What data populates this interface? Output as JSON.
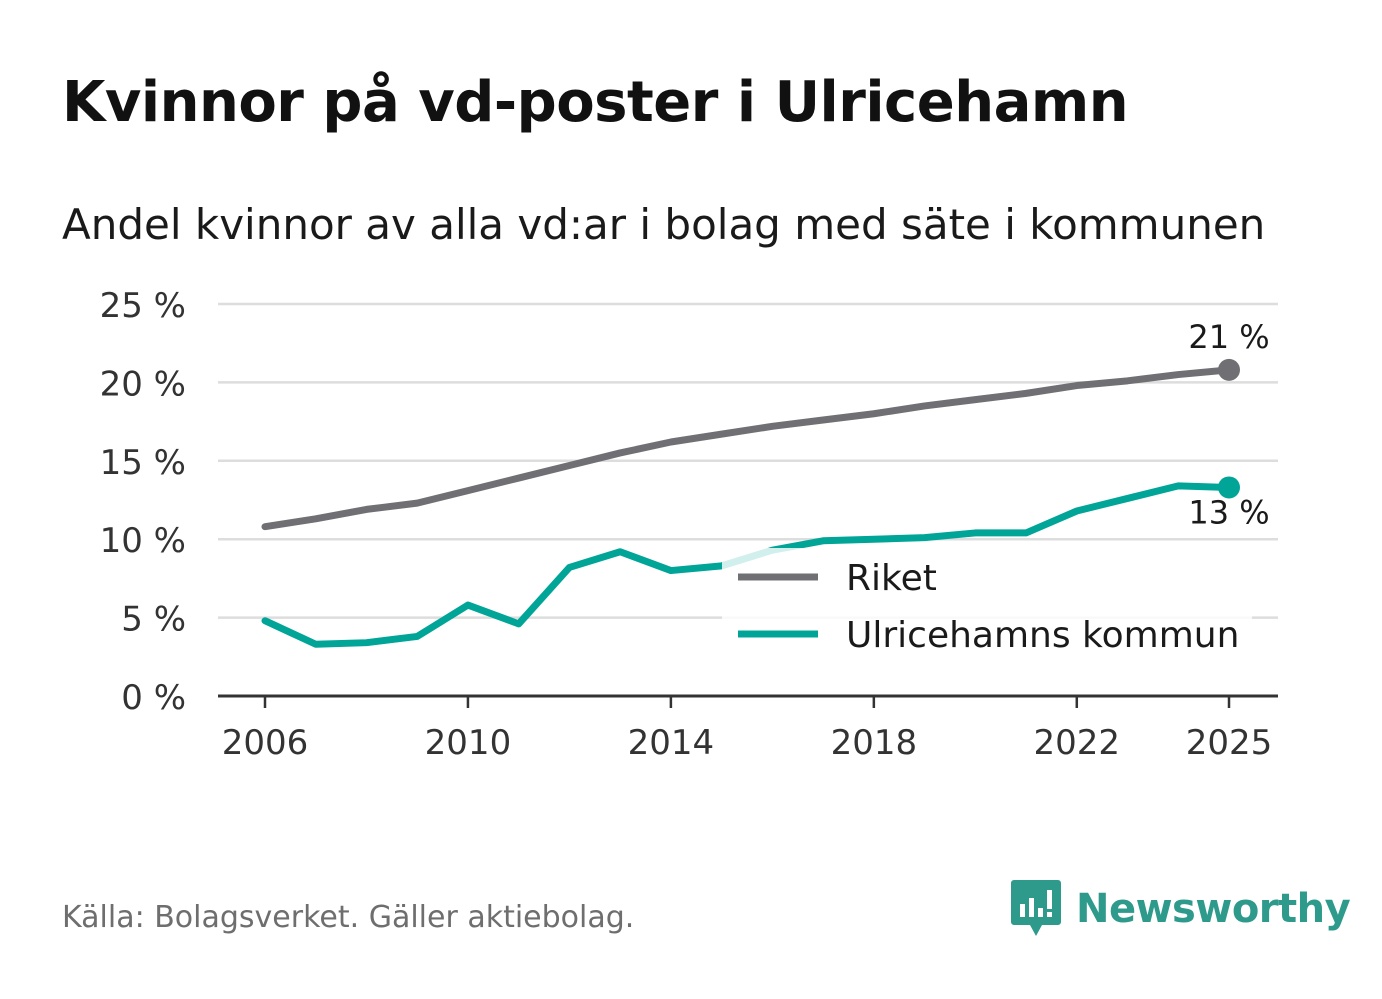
{
  "title": "Kvinnor på vd-poster i Ulricehamn",
  "subtitle": "Andel kvinnor av alla vd:ar i bolag med säte i kommunen",
  "source": "Källa: Bolagsverket. Gäller aktiebolag.",
  "brand": "Newsworthy",
  "colors": {
    "riket": "#707074",
    "kommun": "#00a597",
    "grid": "#dddddd",
    "axis": "#333333",
    "tick_text": "#333333"
  },
  "chart_data": {
    "type": "line",
    "ylim": [
      0,
      25
    ],
    "xlim": [
      2006,
      2025
    ],
    "y_ticks": [
      0,
      5,
      10,
      15,
      20,
      25
    ],
    "y_tick_labels": [
      "0 %",
      "5 %",
      "10 %",
      "15 %",
      "20 %",
      "25 %"
    ],
    "x_ticks": [
      2006,
      2010,
      2014,
      2018,
      2022,
      2025
    ],
    "x_tick_labels": [
      "2006",
      "2010",
      "2014",
      "2018",
      "2022",
      "2025"
    ],
    "grid": true,
    "legend_position": "inside-bottom-right",
    "x": [
      2006,
      2007,
      2008,
      2009,
      2010,
      2011,
      2012,
      2013,
      2014,
      2015,
      2016,
      2017,
      2018,
      2019,
      2020,
      2021,
      2022,
      2023,
      2024,
      2025
    ],
    "series": [
      {
        "name": "Riket",
        "color_key": "riket",
        "values": [
          10.8,
          11.3,
          11.9,
          12.3,
          13.1,
          13.9,
          14.7,
          15.5,
          16.2,
          16.7,
          17.2,
          17.6,
          18.0,
          18.5,
          18.9,
          19.3,
          19.8,
          20.1,
          20.5,
          20.8
        ],
        "end_label": "21 %"
      },
      {
        "name": "Ulricehamns kommun",
        "color_key": "kommun",
        "values": [
          4.8,
          3.3,
          3.4,
          3.8,
          5.8,
          4.6,
          8.2,
          9.2,
          8.0,
          8.3,
          9.3,
          9.9,
          10.0,
          10.1,
          10.4,
          10.4,
          11.8,
          12.6,
          13.4,
          13.3
        ],
        "end_label": "13 %"
      }
    ]
  }
}
